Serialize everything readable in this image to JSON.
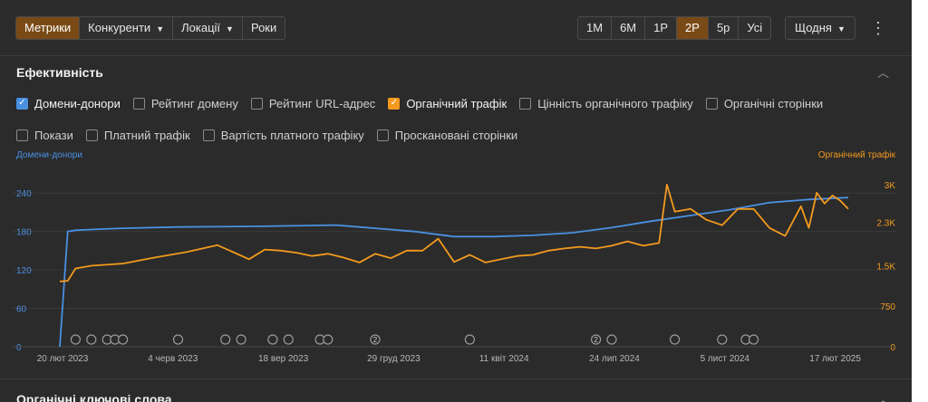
{
  "toolbar": {
    "tabs": [
      {
        "label": "Метрики",
        "active": true
      },
      {
        "label": "Конкуренти",
        "dropdown": true
      },
      {
        "label": "Локації",
        "dropdown": true
      },
      {
        "label": "Роки"
      }
    ],
    "ranges": [
      "1М",
      "6М",
      "1Р",
      "2Р",
      "5р",
      "Усі"
    ],
    "active_range": "2Р",
    "granularity": "Щодня",
    "more_icon": "kebab-icon"
  },
  "section": {
    "title": "Ефективність",
    "collapse_icon": "chevron-up-icon"
  },
  "metrics": {
    "row1": [
      {
        "label": "Домени-донори",
        "checked": true,
        "color": "#4a90e2"
      },
      {
        "label": "Рейтинг домену",
        "checked": false
      },
      {
        "label": "Рейтинг URL-адрес",
        "checked": false
      },
      {
        "label": "Органічний трафік",
        "checked": true,
        "color": "#f39a1e"
      },
      {
        "label": "Цінність органічного трафіку",
        "checked": false
      },
      {
        "label": "Органічні сторінки",
        "checked": false
      }
    ],
    "row2": [
      {
        "label": "Покази",
        "checked": false
      },
      {
        "label": "Платний трафік",
        "checked": false
      },
      {
        "label": "Вартість платного трафіку",
        "checked": false
      },
      {
        "label": "Проскановані сторінки",
        "checked": false
      }
    ]
  },
  "chart_data": {
    "type": "line",
    "left_axis_label": "Домени-донори",
    "right_axis_label": "Органічний трафік",
    "left_ticks": [
      "0",
      "60",
      "120",
      "180",
      "240"
    ],
    "right_ticks": [
      "0",
      "750",
      "1.5K",
      "2.3K",
      "3K"
    ],
    "ylim_left": [
      0,
      270
    ],
    "ylim_right": [
      0,
      3200
    ],
    "x_labels": [
      "20 лют 2023",
      "4 черв 2023",
      "18 вер 2023",
      "29 груд 2023",
      "11 квіт 2024",
      "24 лип 2024",
      "5 лист 2024",
      "17 лют 2025"
    ],
    "grid": true,
    "colors": {
      "left": "#4a90e2",
      "right": "#f39a1e"
    },
    "series": [
      {
        "name": "Домени-донори",
        "axis": "left",
        "x": [
          0,
          1,
          2,
          4,
          8,
          15,
          25,
          35,
          45,
          50,
          55,
          60,
          65,
          70,
          75,
          80,
          85,
          90,
          95,
          100
        ],
        "values": [
          0,
          180,
          182,
          183,
          185,
          187,
          188,
          190,
          180,
          172,
          172,
          174,
          178,
          186,
          196,
          205,
          214,
          225,
          230,
          233
        ]
      },
      {
        "name": "Органічний трафік",
        "axis": "right",
        "x": [
          0,
          1,
          2,
          4,
          8,
          12,
          16,
          20,
          22,
          24,
          26,
          28,
          30,
          32,
          34,
          36,
          38,
          40,
          42,
          44,
          46,
          48,
          50,
          52,
          54,
          56,
          58,
          60,
          62,
          64,
          66,
          68,
          70,
          72,
          74,
          76,
          77,
          78,
          80,
          82,
          84,
          86,
          88,
          90,
          92,
          94,
          95,
          96,
          97,
          98,
          99,
          100
        ],
        "values": [
          1210,
          1220,
          1450,
          1500,
          1540,
          1650,
          1750,
          1880,
          1750,
          1620,
          1800,
          1780,
          1740,
          1680,
          1720,
          1650,
          1560,
          1720,
          1640,
          1780,
          1780,
          2000,
          1570,
          1700,
          1560,
          1620,
          1680,
          1700,
          1780,
          1820,
          1850,
          1820,
          1870,
          1950,
          1870,
          1920,
          3000,
          2500,
          2550,
          2350,
          2250,
          2550,
          2550,
          2200,
          2050,
          2600,
          2200,
          2850,
          2650,
          2800,
          2700,
          2550
        ]
      }
    ]
  },
  "chart_markers": [
    {
      "label": ""
    },
    {
      "label": ""
    },
    {
      "label": ""
    },
    {
      "label": ""
    },
    {
      "label": ""
    },
    {
      "label": ""
    },
    {
      "label": ""
    },
    {
      "label": ""
    },
    {
      "label": ""
    },
    {
      "label": ""
    },
    {
      "label": ""
    },
    {
      "label": ""
    },
    {
      "label": "2"
    },
    {
      "label": ""
    },
    {
      "label": "2"
    },
    {
      "label": ""
    },
    {
      "label": ""
    },
    {
      "label": ""
    },
    {
      "label": ""
    },
    {
      "label": ""
    }
  ],
  "next_section": {
    "title": "Органічні ключові слова"
  }
}
